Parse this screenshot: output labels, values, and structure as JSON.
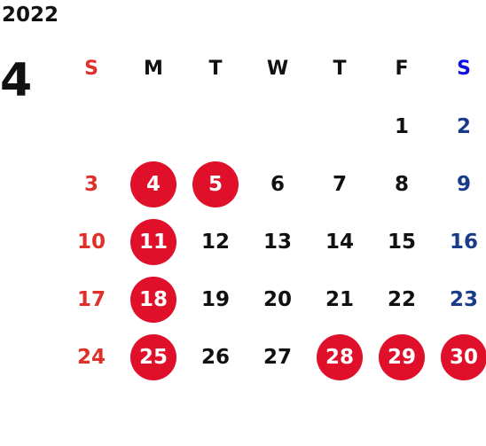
{
  "header": {
    "year": "2022",
    "month": "4"
  },
  "colors": {
    "sunday": "#e0302a",
    "saturday_header": "#1010e0",
    "saturday": "#1a3a8a",
    "weekday": "#111111",
    "holiday_circle": "#e0102a"
  },
  "weekdays": [
    "S",
    "M",
    "T",
    "W",
    "T",
    "F",
    "S"
  ],
  "weeks": [
    [
      null,
      null,
      null,
      null,
      null,
      "1",
      "2"
    ],
    [
      "3",
      "4",
      "5",
      "6",
      "7",
      "8",
      "9"
    ],
    [
      "10",
      "11",
      "12",
      "13",
      "14",
      "15",
      "16"
    ],
    [
      "17",
      "18",
      "19",
      "20",
      "21",
      "22",
      "23"
    ],
    [
      "24",
      "25",
      "26",
      "27",
      "28",
      "29",
      "30"
    ]
  ],
  "holidays": [
    "4",
    "5",
    "11",
    "18",
    "25",
    "28",
    "29",
    "30"
  ]
}
